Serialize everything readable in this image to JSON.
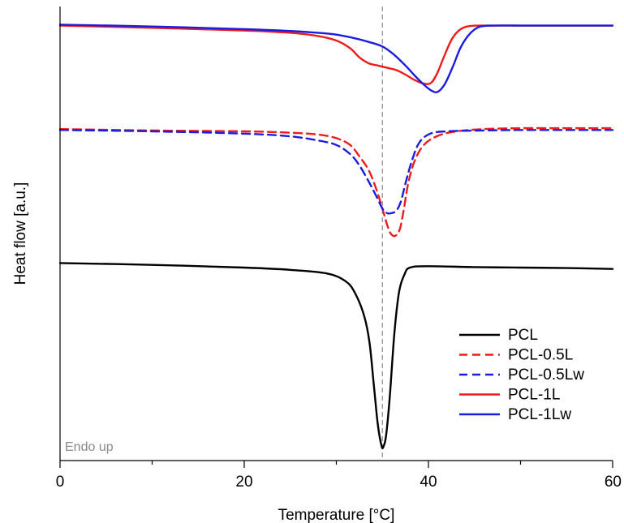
{
  "chart_data": {
    "type": "line",
    "title": "",
    "xlabel": "Temperature [°C]",
    "ylabel": "Heat flow [a.u.]",
    "xlim": [
      0,
      60
    ],
    "ylim": [
      0,
      10
    ],
    "xticks": [
      0,
      20,
      40,
      60
    ],
    "x_minor_step": 10,
    "y_tick_labels": false,
    "grid": false,
    "legend_position": "bottom-right",
    "annotations": [
      {
        "text": "Endo up",
        "position": "bottom-left",
        "color": "#8a8a8a"
      }
    ],
    "reference_line": {
      "x": 35,
      "style": "dashed",
      "color": "#888888"
    },
    "series": [
      {
        "name": "PCL",
        "color": "#000000",
        "dash": "solid",
        "points": [
          [
            0,
            4.35
          ],
          [
            10,
            4.31
          ],
          [
            20,
            4.25
          ],
          [
            25,
            4.2
          ],
          [
            29,
            4.12
          ],
          [
            31,
            3.95
          ],
          [
            32,
            3.7
          ],
          [
            33,
            3.2
          ],
          [
            33.6,
            2.6
          ],
          [
            34.1,
            1.6
          ],
          [
            34.5,
            0.8
          ],
          [
            34.9,
            0.33
          ],
          [
            35.1,
            0.3
          ],
          [
            35.4,
            0.55
          ],
          [
            35.8,
            1.4
          ],
          [
            36.3,
            2.8
          ],
          [
            36.8,
            3.7
          ],
          [
            37.4,
            4.1
          ],
          [
            38,
            4.25
          ],
          [
            40,
            4.28
          ],
          [
            45,
            4.26
          ],
          [
            50,
            4.25
          ],
          [
            55,
            4.24
          ],
          [
            60,
            4.22
          ]
        ]
      },
      {
        "name": "PCL-0.5L",
        "color": "#ee1c1c",
        "dash": "dashed",
        "points": [
          [
            0,
            7.3
          ],
          [
            10,
            7.27
          ],
          [
            20,
            7.25
          ],
          [
            25,
            7.22
          ],
          [
            28,
            7.18
          ],
          [
            30,
            7.1
          ],
          [
            31.5,
            6.95
          ],
          [
            32.5,
            6.7
          ],
          [
            33.5,
            6.4
          ],
          [
            34.3,
            6.0
          ],
          [
            35,
            5.55
          ],
          [
            35.5,
            5.2
          ],
          [
            35.9,
            5.0
          ],
          [
            36.4,
            4.95
          ],
          [
            36.9,
            5.1
          ],
          [
            37.3,
            5.5
          ],
          [
            37.8,
            6.1
          ],
          [
            38.5,
            6.6
          ],
          [
            39.5,
            6.95
          ],
          [
            41,
            7.15
          ],
          [
            43,
            7.25
          ],
          [
            46,
            7.3
          ],
          [
            50,
            7.32
          ],
          [
            55,
            7.32
          ],
          [
            60,
            7.32
          ]
        ]
      },
      {
        "name": "PCL-0.5Lw",
        "color": "#1c1ce0",
        "dash": "dashed",
        "points": [
          [
            0,
            7.28
          ],
          [
            10,
            7.25
          ],
          [
            20,
            7.2
          ],
          [
            25,
            7.14
          ],
          [
            28,
            7.05
          ],
          [
            30,
            6.95
          ],
          [
            31.5,
            6.75
          ],
          [
            32.5,
            6.5
          ],
          [
            33.5,
            6.15
          ],
          [
            34.4,
            5.8
          ],
          [
            35,
            5.55
          ],
          [
            35.5,
            5.45
          ],
          [
            36,
            5.45
          ],
          [
            36.5,
            5.5
          ],
          [
            37,
            5.7
          ],
          [
            37.5,
            6.1
          ],
          [
            38.2,
            6.6
          ],
          [
            39,
            7.0
          ],
          [
            40.2,
            7.2
          ],
          [
            42,
            7.25
          ],
          [
            46,
            7.27
          ],
          [
            50,
            7.28
          ],
          [
            55,
            7.28
          ],
          [
            60,
            7.28
          ]
        ]
      },
      {
        "name": "PCL-1L",
        "color": "#ee1c1c",
        "dash": "solid",
        "points": [
          [
            0,
            9.58
          ],
          [
            10,
            9.53
          ],
          [
            20,
            9.47
          ],
          [
            25,
            9.42
          ],
          [
            28,
            9.35
          ],
          [
            30,
            9.25
          ],
          [
            31.5,
            9.08
          ],
          [
            32.5,
            8.88
          ],
          [
            33.5,
            8.75
          ],
          [
            34.5,
            8.7
          ],
          [
            35.5,
            8.65
          ],
          [
            36.5,
            8.6
          ],
          [
            37.5,
            8.5
          ],
          [
            38.5,
            8.38
          ],
          [
            39.5,
            8.3
          ],
          [
            40.3,
            8.32
          ],
          [
            41,
            8.55
          ],
          [
            41.8,
            8.95
          ],
          [
            42.6,
            9.3
          ],
          [
            43.5,
            9.5
          ],
          [
            44.5,
            9.57
          ],
          [
            46,
            9.58
          ],
          [
            50,
            9.58
          ],
          [
            55,
            9.58
          ],
          [
            60,
            9.58
          ]
        ]
      },
      {
        "name": "PCL-1Lw",
        "color": "#1c1ce0",
        "dash": "solid",
        "points": [
          [
            0,
            9.6
          ],
          [
            10,
            9.56
          ],
          [
            20,
            9.5
          ],
          [
            25,
            9.46
          ],
          [
            28,
            9.42
          ],
          [
            30,
            9.38
          ],
          [
            32,
            9.3
          ],
          [
            33.5,
            9.22
          ],
          [
            35,
            9.12
          ],
          [
            36.2,
            8.95
          ],
          [
            37.5,
            8.7
          ],
          [
            38.5,
            8.48
          ],
          [
            39.5,
            8.28
          ],
          [
            40.3,
            8.15
          ],
          [
            41,
            8.12
          ],
          [
            41.8,
            8.3
          ],
          [
            42.7,
            8.7
          ],
          [
            43.5,
            9.1
          ],
          [
            44.5,
            9.4
          ],
          [
            45.5,
            9.55
          ],
          [
            47,
            9.58
          ],
          [
            50,
            9.58
          ],
          [
            55,
            9.58
          ],
          [
            60,
            9.58
          ]
        ]
      }
    ]
  }
}
